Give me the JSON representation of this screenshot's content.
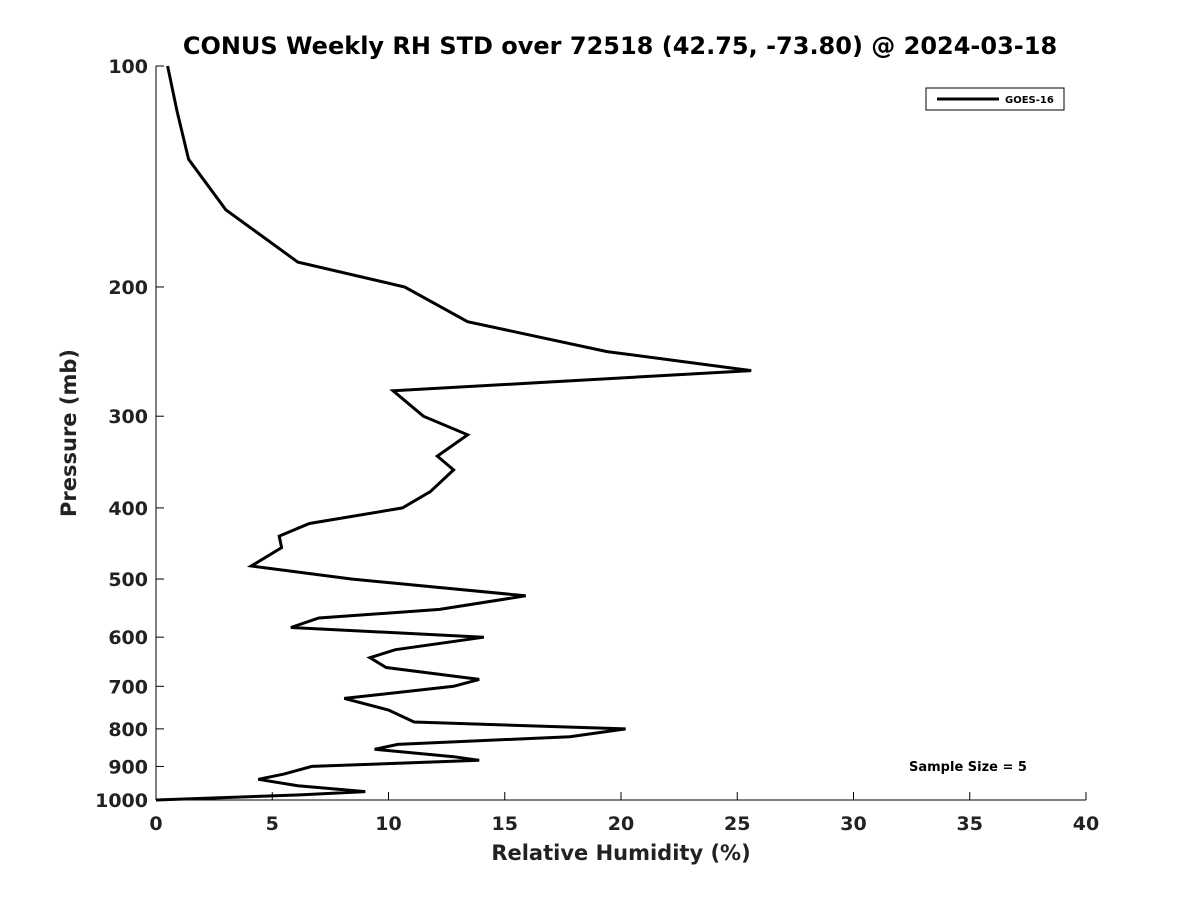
{
  "chart_data": {
    "type": "line",
    "title": "CONUS Weekly RH STD over 72518 (42.75, -73.80) @ 2024-03-18",
    "xlabel": "Relative Humidity (%)",
    "ylabel": "Pressure (mb)",
    "xlim": [
      0,
      40
    ],
    "ylim": [
      100,
      1000
    ],
    "yscale": "log",
    "y_reversed": true,
    "xticks": [
      0,
      5,
      10,
      15,
      20,
      25,
      30,
      35,
      40
    ],
    "yticks": [
      100,
      200,
      300,
      400,
      500,
      600,
      700,
      800,
      900,
      1000
    ],
    "grid": false,
    "legend_position": "top-right",
    "series": [
      {
        "name": "GOES-16",
        "color": "#000000",
        "points": [
          [
            0.5,
            100
          ],
          [
            0.9,
            115
          ],
          [
            1.4,
            134
          ],
          [
            3.0,
            157
          ],
          [
            6.1,
            185
          ],
          [
            10.7,
            200
          ],
          [
            13.4,
            223
          ],
          [
            19.4,
            245
          ],
          [
            25.6,
            260
          ],
          [
            10.2,
            277
          ],
          [
            11.5,
            300
          ],
          [
            13.4,
            318
          ],
          [
            12.1,
            340
          ],
          [
            12.8,
            355
          ],
          [
            11.8,
            380
          ],
          [
            10.6,
            400
          ],
          [
            6.6,
            420
          ],
          [
            5.3,
            437
          ],
          [
            5.4,
            453
          ],
          [
            4.1,
            480
          ],
          [
            8.4,
            500
          ],
          [
            15.9,
            527
          ],
          [
            12.2,
            550
          ],
          [
            7.0,
            565
          ],
          [
            5.8,
            582
          ],
          [
            14.1,
            600
          ],
          [
            10.3,
            624
          ],
          [
            9.2,
            640
          ],
          [
            9.9,
            660
          ],
          [
            13.9,
            685
          ],
          [
            12.8,
            700
          ],
          [
            8.1,
            727
          ],
          [
            10.0,
            754
          ],
          [
            11.1,
            783
          ],
          [
            20.2,
            800
          ],
          [
            17.8,
            820
          ],
          [
            10.4,
            840
          ],
          [
            9.4,
            853
          ],
          [
            12.8,
            873
          ],
          [
            13.9,
            883
          ],
          [
            6.7,
            900
          ],
          [
            5.5,
            922
          ],
          [
            4.4,
            937
          ],
          [
            6.1,
            956
          ],
          [
            9.0,
            974
          ],
          [
            6.2,
            984
          ],
          [
            0.0,
            1000
          ]
        ]
      }
    ],
    "annotation": "Sample Size = 5"
  }
}
